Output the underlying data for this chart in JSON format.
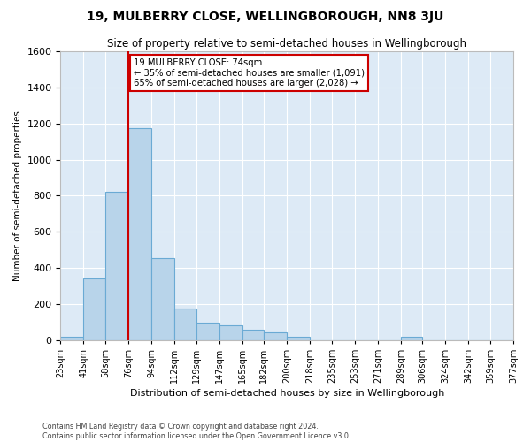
{
  "title": "19, MULBERRY CLOSE, WELLINGBOROUGH, NN8 3JU",
  "subtitle": "Size of property relative to semi-detached houses in Wellingborough",
  "xlabel": "Distribution of semi-detached houses by size in Wellingborough",
  "ylabel": "Number of semi-detached properties",
  "bar_color": "#b8d4ea",
  "bar_edge_color": "#6aaad4",
  "background_color": "#ddeaf6",
  "grid_color": "#ffffff",
  "annotation_box_color": "#ffffff",
  "annotation_border_color": "#cc0000",
  "property_line_color": "#cc0000",
  "property_line_x": 76,
  "property_label": "19 MULBERRY CLOSE: 74sqm",
  "pct_smaller": 35,
  "pct_larger": 65,
  "n_smaller": "1,091",
  "n_larger": "2,028",
  "bins": [
    23,
    41,
    58,
    76,
    94,
    112,
    129,
    147,
    165,
    182,
    200,
    218,
    235,
    253,
    271,
    289,
    306,
    324,
    342,
    359,
    377
  ],
  "bin_labels": [
    "23sqm",
    "41sqm",
    "58sqm",
    "76sqm",
    "94sqm",
    "112sqm",
    "129sqm",
    "147sqm",
    "165sqm",
    "182sqm",
    "200sqm",
    "218sqm",
    "235sqm",
    "253sqm",
    "271sqm",
    "289sqm",
    "306sqm",
    "324sqm",
    "342sqm",
    "359sqm",
    "377sqm"
  ],
  "values": [
    20,
    340,
    820,
    1175,
    455,
    175,
    95,
    80,
    55,
    40,
    20,
    0,
    0,
    0,
    0,
    20,
    0,
    0,
    0,
    0
  ],
  "ylim": [
    0,
    1600
  ],
  "yticks": [
    0,
    200,
    400,
    600,
    800,
    1000,
    1200,
    1400,
    1600
  ],
  "footer1": "Contains HM Land Registry data © Crown copyright and database right 2024.",
  "footer2": "Contains public sector information licensed under the Open Government Licence v3.0."
}
